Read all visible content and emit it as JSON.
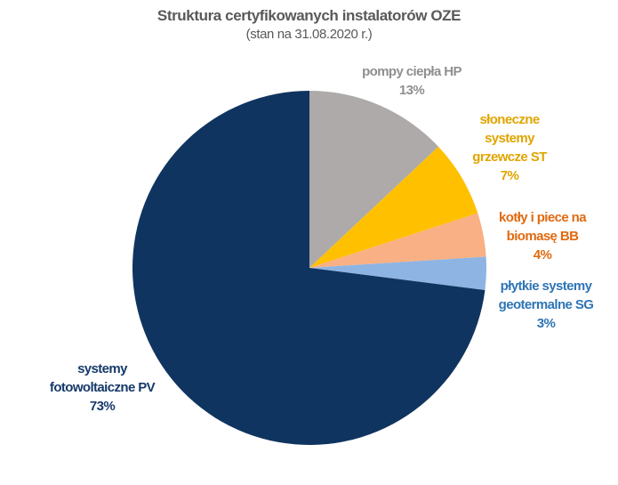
{
  "chart_data": {
    "type": "pie",
    "title": "Struktura certyfikowanych instalatorów OZE",
    "subtitle": "(stan na 31.08.2020 r.)",
    "categories": [
      "pompy ciepła HP",
      "słoneczne systemy grzewcze ST",
      "kotły i piece na biomasę BB",
      "płytkie systemy geotermalne SG",
      "systemy fotowoltaiczne PV"
    ],
    "values": [
      13,
      7,
      4,
      3,
      73
    ],
    "value_labels": [
      "13%",
      "7%",
      "4%",
      "3%",
      "73%"
    ],
    "colors": [
      "#aeaaaa",
      "#ffc000",
      "#f8b084",
      "#8eb4e3",
      "#0f345f"
    ],
    "label_colors": [
      "#8f8f8f",
      "#e0a500",
      "#e06a10",
      "#2e75b6",
      "#173a6a"
    ]
  }
}
